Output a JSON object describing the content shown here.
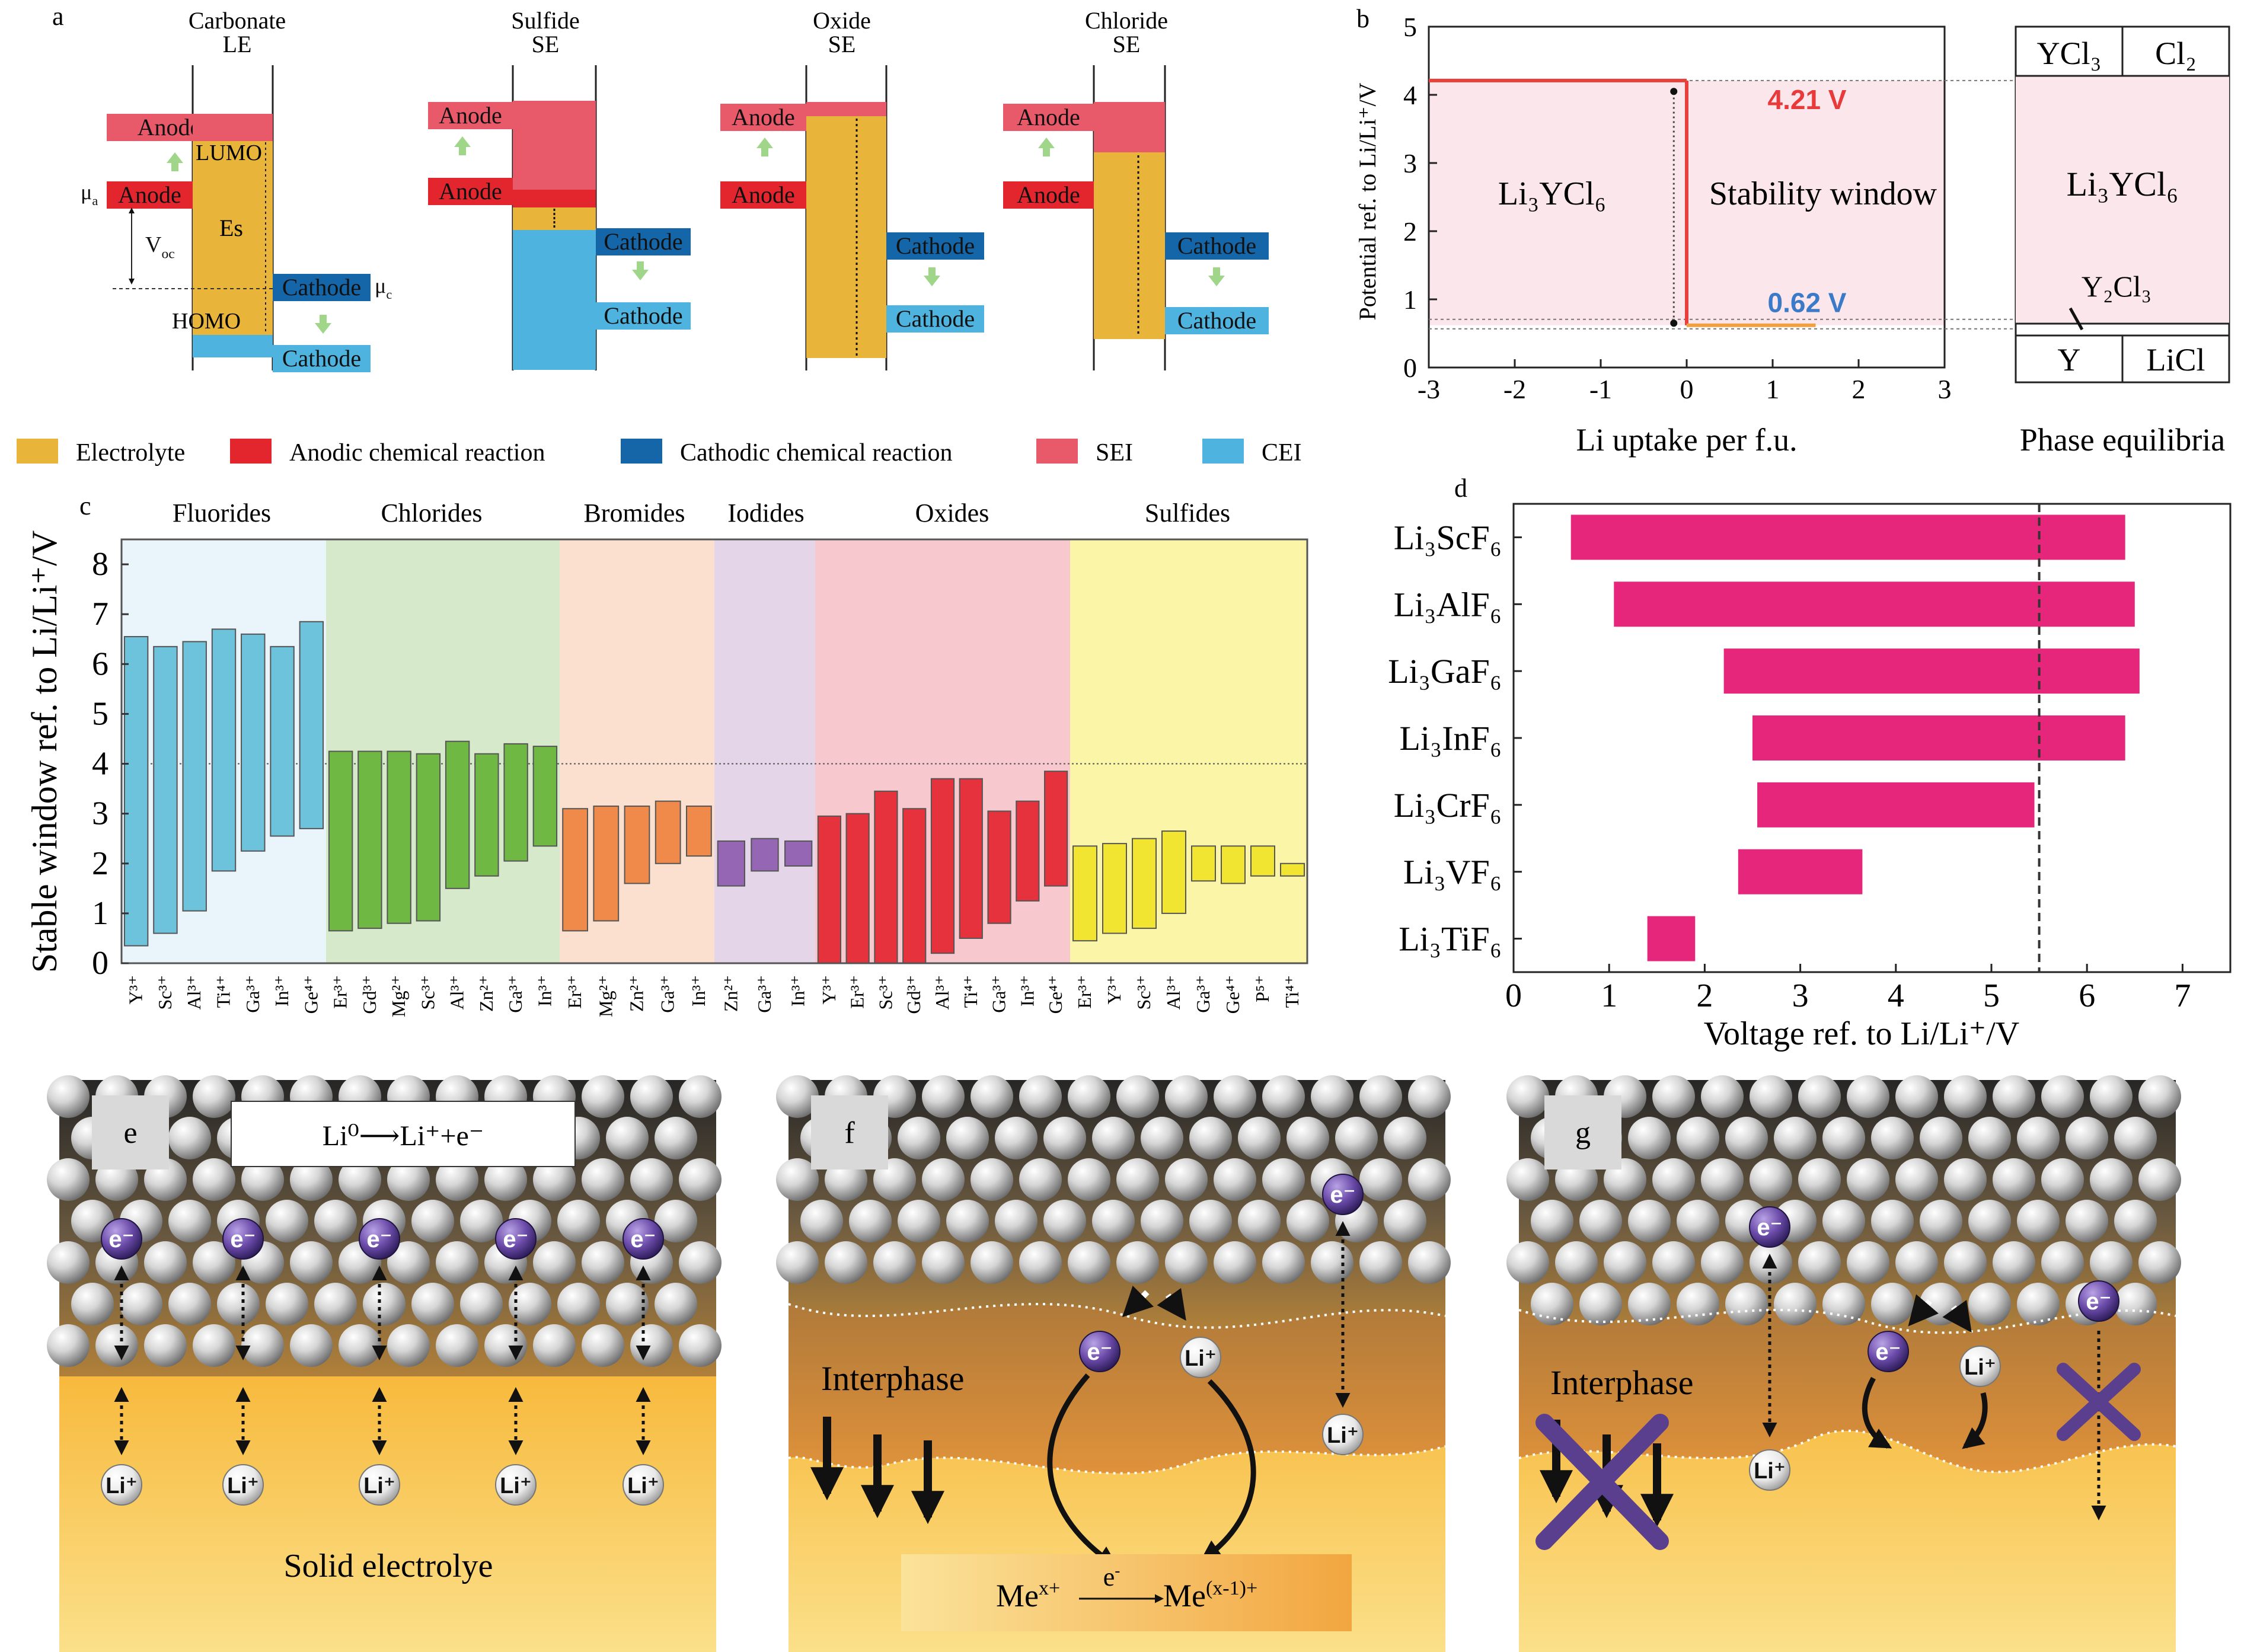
{
  "colors": {
    "electrolyte": "#e8b43a",
    "anodic_reaction": "#e3262e",
    "cathodic_reaction": "#1566a8",
    "sei": "#e85a6a",
    "cei": "#4fb3e0",
    "li3ycl6_region": "#fbe6ec",
    "bar_d": "#e5267a",
    "fluorides": "#6ec3dc",
    "chlorides": "#70b844",
    "bromides": "#ef8a4a",
    "iodides": "#9566b3",
    "oxides": "#e5323c",
    "sulfides": "#f2e532"
  },
  "panel_a": {
    "letter": "a",
    "columns": [
      {
        "title1": "Carbonate",
        "title2": "LE"
      },
      {
        "title1": "Sulfide",
        "title2": "SE"
      },
      {
        "title1": "Oxide",
        "title2": "SE"
      },
      {
        "title1": "Chloride",
        "title2": "SE"
      }
    ],
    "anode": "Anode",
    "cathode": "Cathode",
    "lumo": "LUMO",
    "homo": "HOMO",
    "es": "Es",
    "mu_a": "μ",
    "mu_a_sub": "a",
    "mu_c": "μ",
    "mu_c_sub": "c",
    "voc": "V",
    "voc_sub": "oc"
  },
  "legend": [
    {
      "label": "Electrolyte",
      "color": "#e8b43a"
    },
    {
      "label": "Anodic chemical reaction",
      "color": "#e3262e"
    },
    {
      "label": "Cathodic chemical reaction",
      "color": "#1566a8"
    },
    {
      "label": "SEI",
      "color": "#e85a6a"
    },
    {
      "label": "CEI",
      "color": "#4fb3e0"
    }
  ],
  "chart_data": [
    {
      "panel": "b",
      "type": "line",
      "xlabel": "Li uptake per f.u.",
      "ylabel": "Potential ref. to Li/Li⁺/V",
      "xlim": [
        -3,
        3
      ],
      "ylim": [
        0,
        5
      ],
      "xticks": [
        "-3",
        "-2",
        "-1",
        "0",
        "1",
        "2",
        "3"
      ],
      "yticks": [
        "0",
        "1",
        "2",
        "3",
        "4",
        "5"
      ],
      "series": [
        {
          "segments": [
            [
              [
                -3,
                4.21
              ],
              [
                0,
                4.21
              ]
            ],
            [
              [
                0,
                4.21
              ],
              [
                0,
                0.62
              ]
            ]
          ]
        },
        {
          "segments": [
            [
              [
                0,
                0.62
              ],
              [
                1.5,
                0.62
              ]
            ]
          ]
        }
      ],
      "annotations": [
        {
          "text": "4.21 V",
          "value": 4.21
        },
        {
          "text": "0.62 V",
          "value": 0.62
        }
      ],
      "region_labels": {
        "left": "Li₃YCl₆",
        "right": "Stability window"
      },
      "phase_equilibria": {
        "title": "Phase equilibria",
        "top": [
          "YCl₃",
          "Cl₂"
        ],
        "middle": "Li₃YCl₆",
        "y2cl3": "Y₂Cl₃",
        "bottom": [
          "Y",
          "LiCl"
        ]
      }
    },
    {
      "panel": "c",
      "type": "bar",
      "ylabel": "Stable window ref. to Li/Li⁺/V",
      "ylim": [
        0,
        8.5
      ],
      "yticks": [
        "0",
        "1",
        "2",
        "3",
        "4",
        "5",
        "6",
        "7",
        "8"
      ],
      "groups": [
        {
          "name": "Fluorides",
          "color": "#6ec3dc",
          "bg": "#e9f4fb",
          "bars": [
            {
              "ion": "Y³⁺",
              "low": 0.35,
              "high": 6.55
            },
            {
              "ion": "Sc³⁺",
              "low": 0.6,
              "high": 6.35
            },
            {
              "ion": "Al³⁺",
              "low": 1.05,
              "high": 6.45
            },
            {
              "ion": "Ti⁴⁺",
              "low": 1.85,
              "high": 6.7
            },
            {
              "ion": "Ga³⁺",
              "low": 2.25,
              "high": 6.6
            },
            {
              "ion": "In³⁺",
              "low": 2.55,
              "high": 6.35
            },
            {
              "ion": "Ge⁴⁺",
              "low": 2.7,
              "high": 6.85
            }
          ]
        },
        {
          "name": "Chlorides",
          "color": "#70b844",
          "bg": "#d6eacb",
          "bars": [
            {
              "ion": "Er³⁺",
              "low": 0.65,
              "high": 4.25
            },
            {
              "ion": "Gd³⁺",
              "low": 0.7,
              "high": 4.25
            },
            {
              "ion": "Mg²⁺",
              "low": 0.8,
              "high": 4.25
            },
            {
              "ion": "Sc³⁺",
              "low": 0.85,
              "high": 4.2
            },
            {
              "ion": "Al³⁺",
              "low": 1.5,
              "high": 4.45
            },
            {
              "ion": "Zn²⁺",
              "low": 1.75,
              "high": 4.2
            },
            {
              "ion": "Ga³⁺",
              "low": 2.05,
              "high": 4.4
            },
            {
              "ion": "In³⁺",
              "low": 2.35,
              "high": 4.35
            }
          ]
        },
        {
          "name": "Bromides",
          "color": "#ef8a4a",
          "bg": "#fbe0cf",
          "bars": [
            {
              "ion": "Er³⁺",
              "low": 0.65,
              "high": 3.1
            },
            {
              "ion": "Mg²⁺",
              "low": 0.85,
              "high": 3.15
            },
            {
              "ion": "Zn²⁺",
              "low": 1.6,
              "high": 3.15
            },
            {
              "ion": "Ga³⁺",
              "low": 2.0,
              "high": 3.25
            },
            {
              "ion": "In³⁺",
              "low": 2.15,
              "high": 3.15
            }
          ]
        },
        {
          "name": "Iodides",
          "color": "#9566b3",
          "bg": "#e5d5e8",
          "bars": [
            {
              "ion": "Zn²⁺",
              "low": 1.55,
              "high": 2.45
            },
            {
              "ion": "Ga³⁺",
              "low": 1.85,
              "high": 2.5
            },
            {
              "ion": "In³⁺",
              "low": 1.95,
              "high": 2.45
            }
          ]
        },
        {
          "name": "Oxides",
          "color": "#e5323c",
          "bg": "#f7c8cd",
          "bars": [
            {
              "ion": "Y³⁺",
              "low": 0.0,
              "high": 2.95
            },
            {
              "ion": "Er³⁺",
              "low": 0.0,
              "high": 3.0
            },
            {
              "ion": "Sc³⁺",
              "low": 0.0,
              "high": 3.45
            },
            {
              "ion": "Gd³⁺",
              "low": 0.0,
              "high": 3.1
            },
            {
              "ion": "Al³⁺",
              "low": 0.2,
              "high": 3.7
            },
            {
              "ion": "Ti⁴⁺",
              "low": 0.5,
              "high": 3.7
            },
            {
              "ion": "Ga³⁺",
              "low": 0.8,
              "high": 3.05
            },
            {
              "ion": "In³⁺",
              "low": 1.25,
              "high": 3.25
            },
            {
              "ion": "Ge⁴⁺",
              "low": 1.55,
              "high": 3.85
            }
          ]
        },
        {
          "name": "Sulfides",
          "color": "#f2e532",
          "bg": "#fbf5a8",
          "bars": [
            {
              "ion": "Er³⁺",
              "low": 0.45,
              "high": 2.35
            },
            {
              "ion": "Y³⁺",
              "low": 0.6,
              "high": 2.4
            },
            {
              "ion": "Sc³⁺",
              "low": 0.7,
              "high": 2.5
            },
            {
              "ion": "Al³⁺",
              "low": 1.0,
              "high": 2.65
            },
            {
              "ion": "Ga³⁺",
              "low": 1.65,
              "high": 2.35
            },
            {
              "ion": "Ge⁴⁺",
              "low": 1.6,
              "high": 2.35
            },
            {
              "ion": "P⁵⁺",
              "low": 1.75,
              "high": 2.35
            },
            {
              "ion": "Ti⁴⁺",
              "low": 1.75,
              "high": 2.0
            }
          ]
        }
      ]
    },
    {
      "panel": "d",
      "type": "bar",
      "orientation": "horizontal",
      "xlabel": "Voltage ref. to Li/Li⁺/V",
      "xlim": [
        0,
        7.5
      ],
      "xticks": [
        "0",
        "1",
        "2",
        "3",
        "4",
        "5",
        "6",
        "7"
      ],
      "reference_line": 5.5,
      "categories": [
        "Li₃ScF₆",
        "Li₃AlF₆",
        "Li₃GaF₆",
        "Li₃InF₆",
        "Li₃CrF₆",
        "Li₃VF₆",
        "Li₃TiF₆"
      ],
      "ranges": [
        [
          0.6,
          6.4
        ],
        [
          1.05,
          6.5
        ],
        [
          2.2,
          6.55
        ],
        [
          2.5,
          6.4
        ],
        [
          2.55,
          5.45
        ],
        [
          2.35,
          3.65
        ],
        [
          1.4,
          1.9
        ]
      ]
    }
  ],
  "panel_e": {
    "letter": "e",
    "reaction": "Li⁰⟶Li⁺+e⁻",
    "electron": "e⁻",
    "lithium": "Li⁺",
    "solid": "Solid electrolye"
  },
  "panel_f": {
    "letter": "f",
    "interphase": "Interphase",
    "reaction_left": "Me",
    "reaction_left_sup": "x+",
    "reaction_mid": "e",
    "reaction_mid_sup": "-",
    "reaction_right": "Me",
    "reaction_right_sup": "(x-1)+",
    "electron": "e⁻",
    "lithium": "Li⁺"
  },
  "panel_g": {
    "letter": "g",
    "interphase": "Interphase",
    "electron": "e⁻",
    "lithium": "Li⁺"
  }
}
